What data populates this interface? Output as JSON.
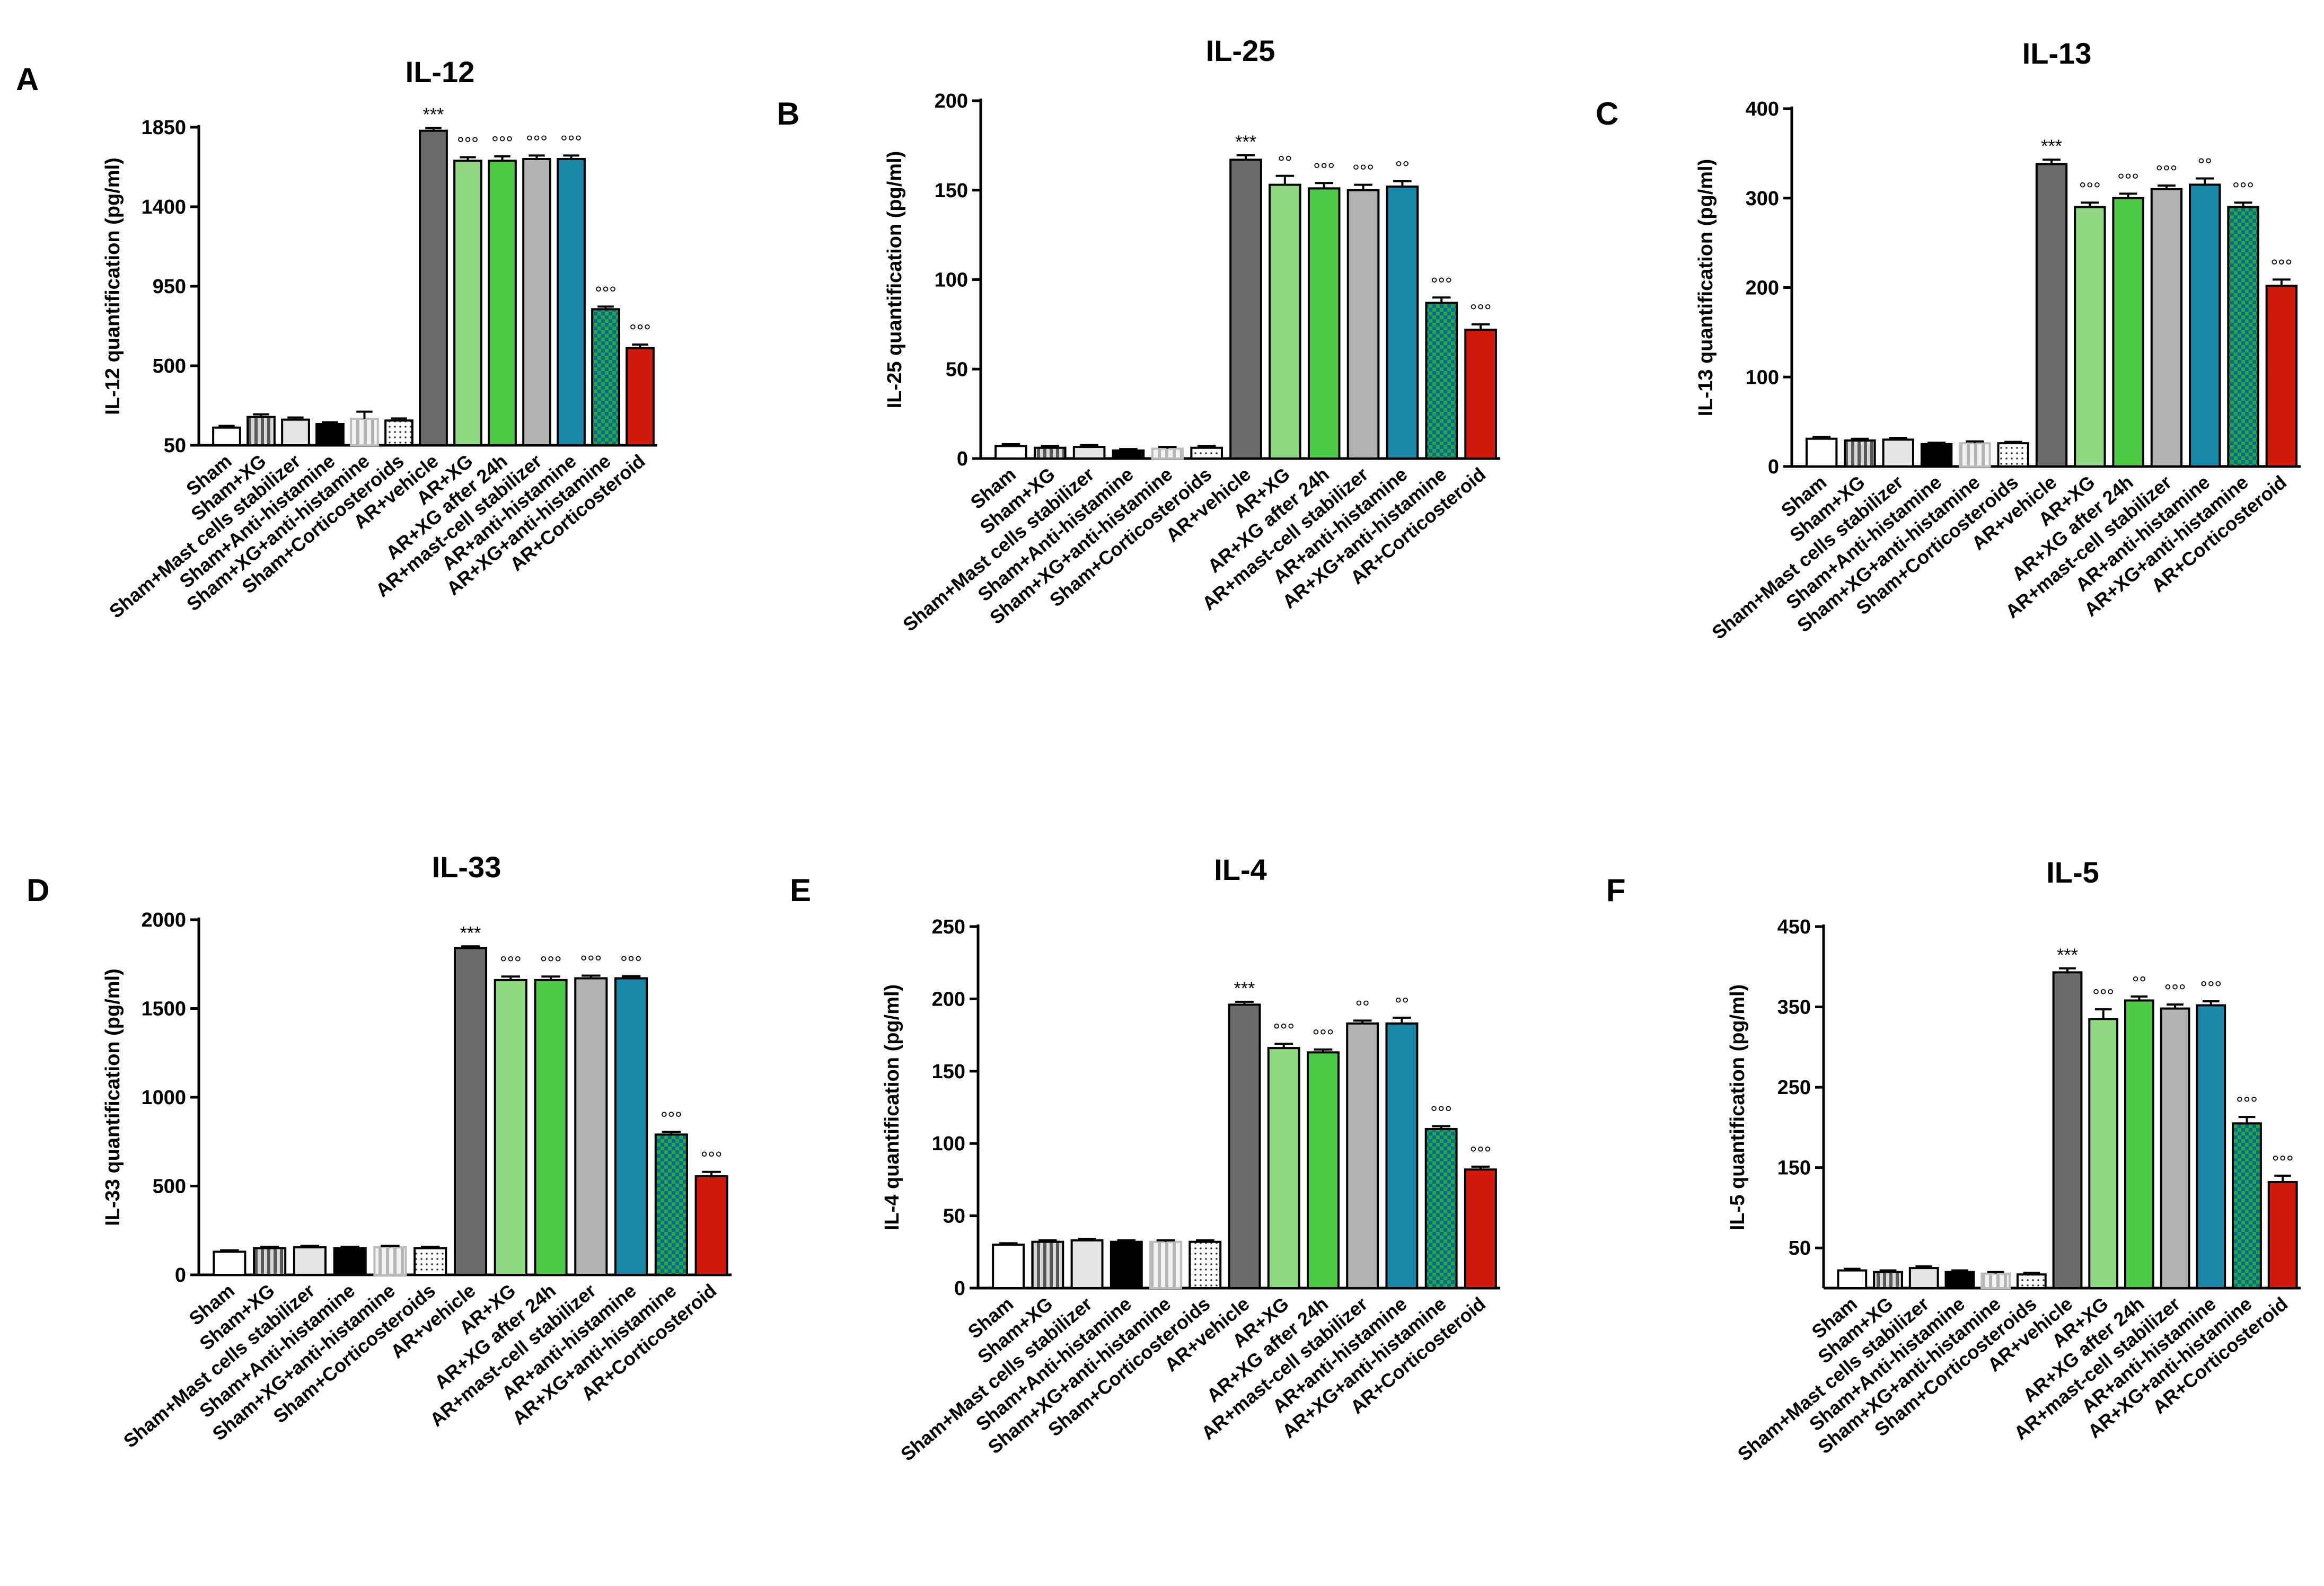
{
  "chart_data": [
    {
      "type": "bar",
      "panel": "A",
      "title": "IL-12",
      "ylabel": "IL-12 quantification (pg/ml)",
      "ylim": [
        50,
        1850
      ],
      "yticks": [
        50,
        500,
        950,
        1400,
        1850
      ],
      "categories": [
        "Sham",
        "Sham+XG",
        "Sham+Mast cells stabilizer",
        "Sham+Anti-histamine",
        "Sham+XG+anti-histamine",
        "Sham+Corticosteroids",
        "AR+vehicle",
        "AR+XG",
        "AR+XG after 24h",
        "AR+mast-cell stabilizer",
        "AR+anti-histamine",
        "AR+XG+anti-histamine",
        "AR+Corticosteroid"
      ],
      "values": [
        150,
        210,
        195,
        170,
        200,
        190,
        1830,
        1660,
        1660,
        1670,
        1670,
        820,
        600
      ],
      "errors": [
        10,
        15,
        12,
        10,
        40,
        12,
        15,
        20,
        25,
        20,
        20,
        15,
        20
      ],
      "annotations": [
        "",
        "",
        "",
        "",
        "",
        "",
        "***",
        "°°°",
        "°°°",
        "°°°",
        "°°°",
        "°°°",
        "°°°"
      ]
    },
    {
      "type": "bar",
      "panel": "B",
      "title": "IL-25",
      "ylabel": "IL-25 quantification (pg/ml)",
      "ylim": [
        0,
        200
      ],
      "yticks": [
        0,
        50,
        100,
        150,
        200
      ],
      "categories": [
        "Sham",
        "Sham+XG",
        "Sham+Mast cells stabilizer",
        "Sham+Anti-histamine",
        "Sham+XG+anti-histamine",
        "Sham+Corticosteroids",
        "AR+vehicle",
        "AR+XG",
        "AR+XG after 24h",
        "AR+mast-cell stabilizer",
        "AR+anti-histamine",
        "AR+XG+anti-histamine",
        "AR+Corticosteroid"
      ],
      "values": [
        7,
        6,
        6.5,
        4.5,
        5.5,
        6,
        167,
        153,
        151,
        150,
        152,
        87,
        72
      ],
      "errors": [
        1,
        1,
        1,
        0.8,
        1,
        1,
        2.5,
        5,
        3,
        3,
        3,
        3,
        3
      ],
      "annotations": [
        "",
        "",
        "",
        "",
        "",
        "",
        "***",
        "°°",
        "°°°",
        "°°°",
        "°°",
        "°°°",
        "°°°"
      ]
    },
    {
      "type": "bar",
      "panel": "C",
      "title": "IL-13",
      "ylabel": "IL-13 quantification (pg/ml)",
      "ylim": [
        0,
        400
      ],
      "yticks": [
        0,
        100,
        200,
        300,
        400
      ],
      "categories": [
        "Sham",
        "Sham+XG",
        "Sham+Mast cells stabilizer",
        "Sham+Anti-histamine",
        "Sham+XG+anti-histamine",
        "Sham+Corticosteroids",
        "AR+vehicle",
        "AR+XG",
        "AR+XG after 24h",
        "AR+mast-cell stabilizer",
        "AR+anti-histamine",
        "AR+XG+anti-histamine",
        "AR+Corticosteroid"
      ],
      "values": [
        31,
        29,
        30,
        25,
        26,
        26,
        338,
        290,
        300,
        310,
        315,
        290,
        202
      ],
      "errors": [
        2,
        2,
        2,
        1.5,
        2,
        1.5,
        5,
        5,
        5,
        4,
        7,
        5,
        7
      ],
      "annotations": [
        "",
        "",
        "",
        "",
        "",
        "",
        "***",
        "°°°",
        "°°°",
        "°°°",
        "°°",
        "°°°",
        "°°°"
      ]
    },
    {
      "type": "bar",
      "panel": "D",
      "title": "IL-33",
      "ylabel": "IL-33 quantification (pg/ml)",
      "ylim": [
        0,
        2000
      ],
      "yticks": [
        0,
        500,
        1000,
        1500,
        2000
      ],
      "categories": [
        "Sham",
        "Sham+XG",
        "Sham+Mast cells stabilizer",
        "Sham+Anti-histamine",
        "Sham+XG+anti-histamine",
        "Sham+Corticosteroids",
        "AR+vehicle",
        "AR+XG",
        "AR+XG after 24h",
        "AR+mast-cell stabilizer",
        "AR+anti-histamine",
        "AR+XG+anti-histamine",
        "AR+Corticosteroid"
      ],
      "values": [
        130,
        150,
        155,
        150,
        155,
        150,
        1840,
        1660,
        1660,
        1670,
        1670,
        790,
        555
      ],
      "errors": [
        8,
        8,
        8,
        8,
        8,
        8,
        10,
        20,
        20,
        15,
        12,
        15,
        25
      ],
      "annotations": [
        "",
        "",
        "",
        "",
        "",
        "",
        "***",
        "°°°",
        "°°°",
        "°°°",
        "°°°",
        "°°°",
        "°°°"
      ]
    },
    {
      "type": "bar",
      "panel": "E",
      "title": "IL-4",
      "ylabel": "IL-4 quantification (pg/ml)",
      "ylim": [
        0,
        250
      ],
      "yticks": [
        0,
        50,
        100,
        150,
        200,
        250
      ],
      "categories": [
        "Sham",
        "Sham+XG",
        "Sham+Mast cells stabilizer",
        "Sham+Anti-histamine",
        "Sham+XG+anti-histamine",
        "Sham+Corticosteroids",
        "AR+vehicle",
        "AR+XG",
        "AR+XG after 24h",
        "AR+mast-cell stabilizer",
        "AR+anti-histamine",
        "AR+XG+anti-histamine",
        "AR+Corticosteroid"
      ],
      "values": [
        30,
        32,
        33,
        32,
        32,
        32,
        196,
        166,
        163,
        183,
        183,
        110,
        82
      ],
      "errors": [
        1,
        1,
        1,
        1,
        1,
        1,
        2,
        3,
        2,
        2,
        4,
        2,
        2
      ],
      "annotations": [
        "",
        "",
        "",
        "",
        "",
        "",
        "***",
        "°°°",
        "°°°",
        "°°",
        "°°",
        "°°°",
        "°°°"
      ]
    },
    {
      "type": "bar",
      "panel": "F",
      "title": "IL-5",
      "ylabel": "IL-5 quantification (pg/ml)",
      "ylim": [
        0,
        450
      ],
      "yticks": [
        50,
        150,
        250,
        350,
        450
      ],
      "categories": [
        "Sham",
        "Sham+XG",
        "Sham+Mast cells stabilizer",
        "Sham+Anti-histamine",
        "Sham+XG+anti-histamine",
        "Sham+Corticosteroids",
        "AR+vehicle",
        "AR+XG",
        "AR+XG after 24h",
        "AR+mast-cell stabilizer",
        "AR+anti-histamine",
        "AR+XG+anti-histamine",
        "AR+Corticosteroid"
      ],
      "values": [
        22,
        20,
        25,
        20,
        18,
        17,
        393,
        335,
        358,
        348,
        352,
        205,
        132
      ],
      "errors": [
        2,
        2,
        2,
        2,
        2,
        2,
        5,
        12,
        5,
        5,
        5,
        8,
        8
      ],
      "annotations": [
        "",
        "",
        "",
        "",
        "",
        "",
        "***",
        "°°°",
        "°°",
        "°°°",
        "°°°",
        "°°°",
        "°°°"
      ]
    }
  ],
  "colors": {
    "axis": "#000000",
    "ar_vehicle": "#6b6b6b",
    "ar_xg": "#8ed982",
    "ar_xg_24h": "#4ecb46",
    "ar_mast": "#b2b2b2",
    "ar_antihist": "#1a86a8",
    "ar_xg_antihist_a": "#22a84a",
    "ar_xg_antihist_b": "#0f6a8a",
    "ar_cortico": "#d11a0c"
  }
}
